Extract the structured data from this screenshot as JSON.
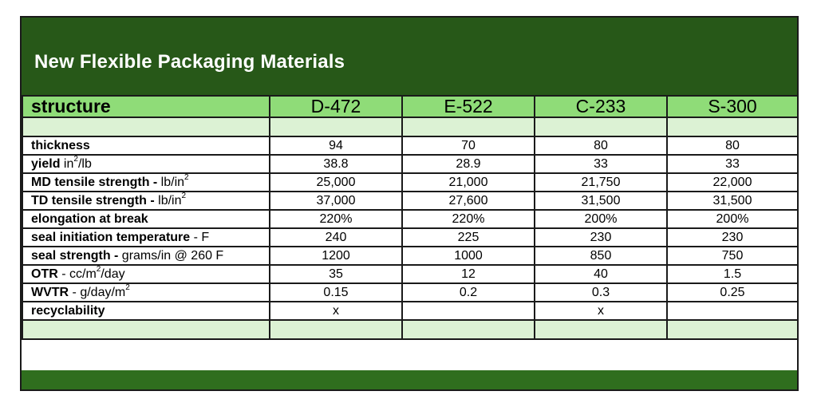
{
  "title": "New Flexible Packaging Materials",
  "header": {
    "structure_label": "structure",
    "columns": [
      "D-472",
      "E-522",
      "C-233",
      "S-300"
    ]
  },
  "rows": [
    {
      "label": "thickness",
      "unit": "",
      "values": [
        "94",
        "70",
        "80",
        "80"
      ]
    },
    {
      "label": "yield",
      "unit_pre": " in",
      "unit_sup": "2",
      "unit_post": "/lb",
      "values": [
        "38.8",
        "28.9",
        "33",
        "33"
      ]
    },
    {
      "label": "MD tensile strength -",
      "unit_pre": " lb/in",
      "unit_sup": "2",
      "unit_post": "",
      "values": [
        "25,000",
        "21,000",
        "21,750",
        "22,000"
      ]
    },
    {
      "label": "TD tensile strength -",
      "unit_pre": "lb/in",
      "unit_sup": "2",
      "unit_post": "",
      "values": [
        "37,000",
        "27,600",
        "31,500",
        "31,500"
      ]
    },
    {
      "label": "elongation at break",
      "unit": "",
      "values": [
        "220%",
        "220%",
        "200%",
        "200%"
      ]
    },
    {
      "label": "seal initiation temperature",
      "unit": " - F",
      "values": [
        "240",
        "225",
        "230",
        "230"
      ]
    },
    {
      "label": "seal strength -",
      "unit": " grams/in @ 260 F",
      "values": [
        "1200",
        "1000",
        "850",
        "750"
      ]
    },
    {
      "label": "OTR",
      "unit_pre": " - cc/m",
      "unit_sup": "2",
      "unit_post": "/day",
      "values": [
        "35",
        "12",
        "40",
        "1.5"
      ]
    },
    {
      "label": "WVTR",
      "unit_pre": " - g/day/m",
      "unit_sup": "2",
      "unit_post": "",
      "values": [
        "0.15",
        "0.2",
        "0.3",
        "0.25"
      ]
    },
    {
      "label": "recyclability",
      "unit": "",
      "values": [
        "x",
        "",
        "x",
        ""
      ]
    }
  ],
  "colors": {
    "banner": "#275818",
    "header_row": "#8fdc78",
    "spacer_row": "#dcf2d4",
    "footer": "#2f6e1e"
  }
}
